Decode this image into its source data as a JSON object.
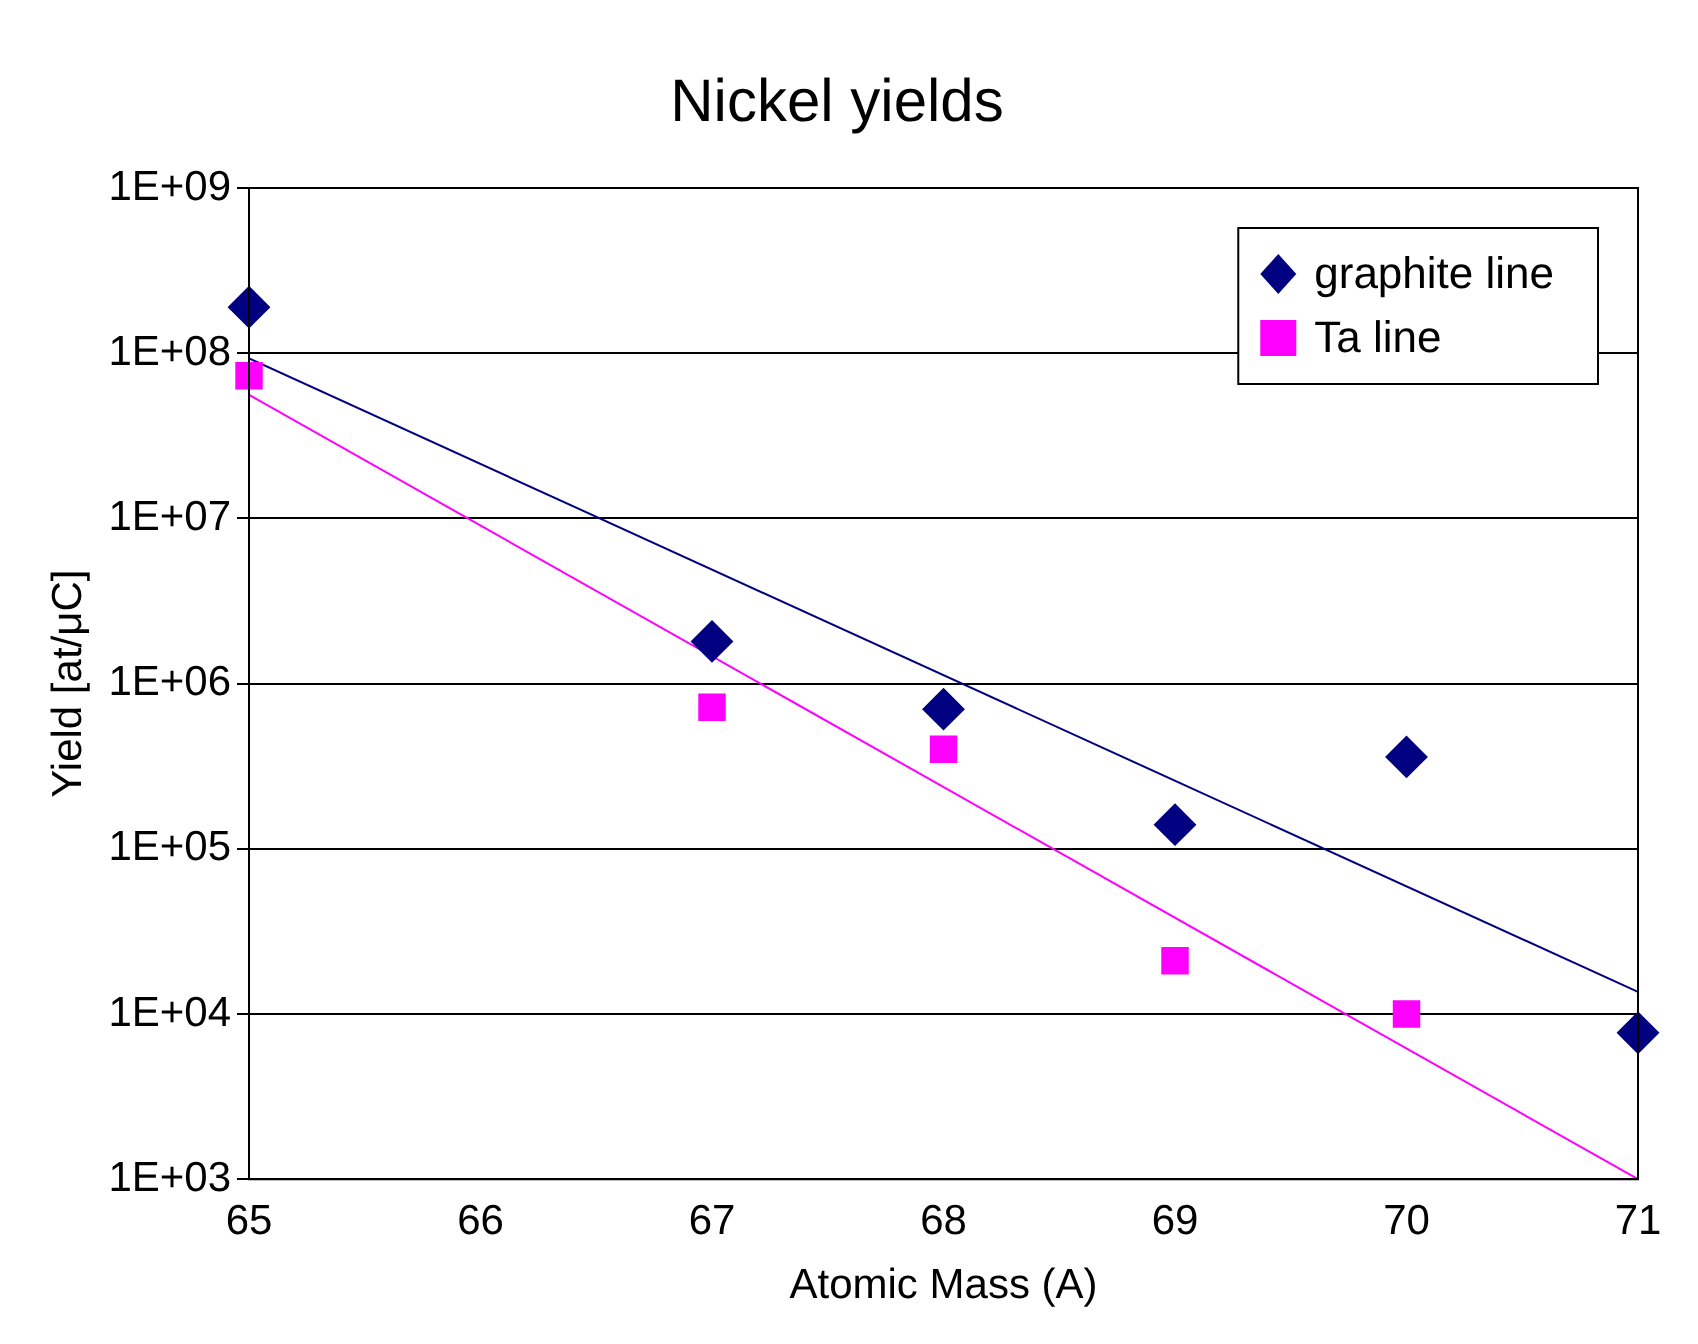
{
  "chart_data": {
    "type": "scatter",
    "title": "Nickel yields",
    "xlabel": "Atomic Mass (A)",
    "ylabel": "Yield [at/μC]",
    "log": "y",
    "grid": "y",
    "legend": "top right",
    "xlim": [
      65,
      71
    ],
    "xticks": [
      65,
      66,
      67,
      68,
      69,
      70,
      71
    ],
    "ylim": [
      1000,
      1000000000
    ],
    "yticks": [
      {
        "value": 1000,
        "label": "1E+03"
      },
      {
        "value": 10000,
        "label": "1E+04"
      },
      {
        "value": 100000,
        "label": "1E+05"
      },
      {
        "value": 1000000,
        "label": "1E+06"
      },
      {
        "value": 10000000,
        "label": "1E+07"
      },
      {
        "value": 100000000,
        "label": "1E+08"
      },
      {
        "value": 1000000000,
        "label": "1E+09"
      }
    ],
    "series": [
      {
        "name": "graphite line",
        "type": "scatter",
        "marker": "diamond",
        "color": "#000080",
        "x": [
          65,
          67,
          68,
          69,
          70,
          71
        ],
        "values": [
          190000000,
          1800000,
          700000,
          140000,
          360000,
          7700
        ]
      },
      {
        "name": "Ta line",
        "type": "scatter",
        "marker": "square",
        "color": "#ff00ff",
        "x": [
          65,
          67,
          68,
          69,
          70
        ],
        "values": [
          73000000,
          720000,
          400000,
          21000,
          10000
        ]
      },
      {
        "type": "line",
        "marker": "none",
        "color": "#000080",
        "x": [
          65,
          71
        ],
        "values": [
          93000000,
          13600
        ]
      },
      {
        "type": "line",
        "marker": "none",
        "color": "#ff00ff",
        "x": [
          65,
          71
        ],
        "values": [
          56000000,
          1000
        ]
      }
    ]
  }
}
